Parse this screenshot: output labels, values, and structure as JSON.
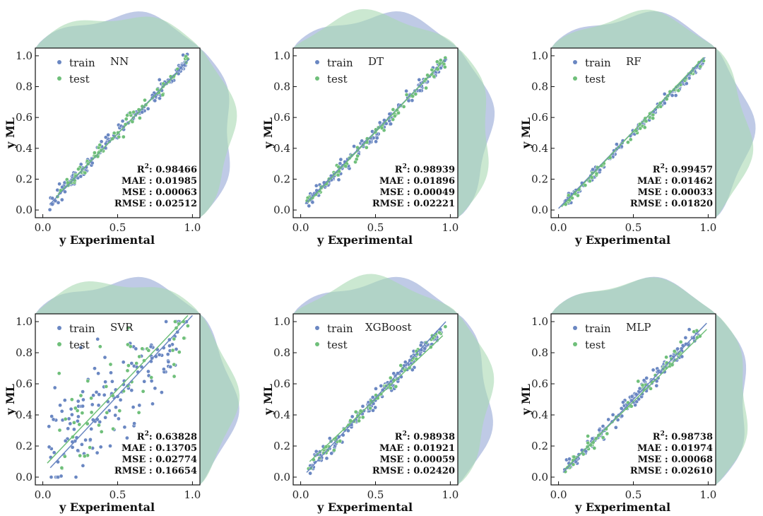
{
  "colors": {
    "train": "#6a87c2",
    "test": "#6fbf7a",
    "train_fill": "#aab8de",
    "test_fill": "#a9d9b2",
    "overlap_fill": "#8fbcb0",
    "axis": "#111111"
  },
  "chart_data": [
    {
      "type": "scatter",
      "model": "NN",
      "xlabel": "y Experimental",
      "ylabel": "y ML",
      "xlim": [
        -0.05,
        1.05
      ],
      "ylim": [
        -0.05,
        1.05
      ],
      "xticks": [
        "0.0",
        "0.5",
        "1.0"
      ],
      "yticks": [
        "0.0",
        "0.2",
        "0.4",
        "0.6",
        "0.8",
        "1.0"
      ],
      "legend": [
        "train",
        "test"
      ],
      "spread": 0.025,
      "fit_lines": {
        "train": [
          0.05,
          0.04,
          0.98,
          0.98
        ],
        "test": [
          0.1,
          0.1,
          0.9,
          0.89
        ]
      },
      "metrics": {
        "r2_label": "R",
        "r2_sup": "2",
        "r2": ": 0.98466",
        "mae": "MAE : 0.01985",
        "mse": "MSE : 0.00063",
        "rmse": "RMSE : 0.02512"
      }
    },
    {
      "type": "scatter",
      "model": "DT",
      "xlabel": "y Experimental",
      "ylabel": "y ML",
      "xlim": [
        -0.05,
        1.05
      ],
      "ylim": [
        -0.05,
        1.05
      ],
      "xticks": [
        "0.0",
        "0.5",
        "1.0"
      ],
      "yticks": [
        "0.0",
        "0.2",
        "0.4",
        "0.6",
        "0.8",
        "1.0"
      ],
      "legend": [
        "train",
        "test"
      ],
      "spread": 0.022,
      "fit_lines": {
        "train": [
          0.03,
          0.04,
          0.97,
          0.98
        ],
        "test": [
          0.05,
          0.05,
          0.96,
          0.97
        ]
      },
      "metrics": {
        "r2_label": "R",
        "r2_sup": "2",
        "r2": ": 0.98939",
        "mae": "MAE : 0.01896",
        "mse": "MSE : 0.00049",
        "rmse": "RMSE : 0.02221"
      }
    },
    {
      "type": "scatter",
      "model": "RF",
      "xlabel": "y Experimental",
      "ylabel": "y ML",
      "xlim": [
        -0.05,
        1.05
      ],
      "ylim": [
        -0.05,
        1.05
      ],
      "xticks": [
        "0.0",
        "0.5",
        "1.0"
      ],
      "yticks": [
        "0.0",
        "0.2",
        "0.4",
        "0.6",
        "0.8",
        "1.0"
      ],
      "legend": [
        "train",
        "test"
      ],
      "spread": 0.016,
      "fit_lines": {
        "train": [
          0.0,
          0.01,
          0.98,
          0.99
        ],
        "test": [
          0.02,
          0.02,
          0.97,
          0.99
        ]
      },
      "metrics": {
        "r2_label": "R",
        "r2_sup": "2",
        "r2": ": 0.99457",
        "mae": "MAE : 0.01462",
        "mse": "MSE : 0.00033",
        "rmse": "RMSE : 0.01820"
      }
    },
    {
      "type": "scatter",
      "model": "SVR",
      "xlabel": "y Experimental",
      "ylabel": "y ML",
      "xlim": [
        -0.05,
        1.05
      ],
      "ylim": [
        -0.05,
        1.05
      ],
      "xticks": [
        "0.0",
        "0.5",
        "1.0"
      ],
      "yticks": [
        "0.0",
        "0.2",
        "0.4",
        "0.6",
        "0.8",
        "1.0"
      ],
      "legend": [
        "train",
        "test"
      ],
      "spread": 0.17,
      "fit_lines": {
        "train": [
          0.05,
          0.06,
          1.0,
          1.04
        ],
        "test": [
          0.03,
          0.09,
          0.97,
          1.04
        ]
      },
      "metrics": {
        "r2_label": "R",
        "r2_sup": "2",
        "r2": ": 0.63828",
        "mae": "MAE : 0.13705",
        "mse": "MSE : 0.02774",
        "rmse": "RMSE : 0.16654"
      }
    },
    {
      "type": "scatter",
      "model": "XGBoost",
      "xlabel": "y Experimental",
      "ylabel": "y ML",
      "xlim": [
        -0.05,
        1.05
      ],
      "ylim": [
        -0.05,
        1.05
      ],
      "xticks": [
        "0.0",
        "0.5",
        "1.0"
      ],
      "yticks": [
        "0.0",
        "0.2",
        "0.4",
        "0.6",
        "0.8",
        "1.0"
      ],
      "legend": [
        "train",
        "test"
      ],
      "spread": 0.024,
      "fit_lines": {
        "train": [
          0.04,
          0.03,
          0.97,
          1.0
        ],
        "test": [
          0.06,
          0.1,
          0.95,
          0.91
        ]
      },
      "metrics": {
        "r2_label": "R",
        "r2_sup": "2",
        "r2": ": 0.98938",
        "mae": "MAE : 0.01921",
        "mse": "MSE : 0.00059",
        "rmse": "RMSE : 0.02420"
      }
    },
    {
      "type": "scatter",
      "model": "MLP",
      "xlabel": "y Experimental",
      "ylabel": "y ML",
      "xlim": [
        -0.05,
        1.05
      ],
      "ylim": [
        -0.05,
        1.05
      ],
      "xticks": [
        "0.0",
        "0.5",
        "1.0"
      ],
      "yticks": [
        "0.0",
        "0.2",
        "0.4",
        "0.6",
        "0.8",
        "1.0"
      ],
      "legend": [
        "train",
        "test"
      ],
      "spread": 0.026,
      "fit_lines": {
        "train": [
          0.03,
          0.03,
          0.99,
          0.99
        ],
        "test": [
          0.04,
          0.05,
          0.99,
          0.95
        ]
      },
      "metrics": {
        "r2_label": "R",
        "r2_sup": "2",
        "r2": ": 0.98738",
        "mae": "MAE : 0.01974",
        "mse": "MSE : 0.00068",
        "rmse": "RMSE : 0.02610"
      }
    }
  ]
}
